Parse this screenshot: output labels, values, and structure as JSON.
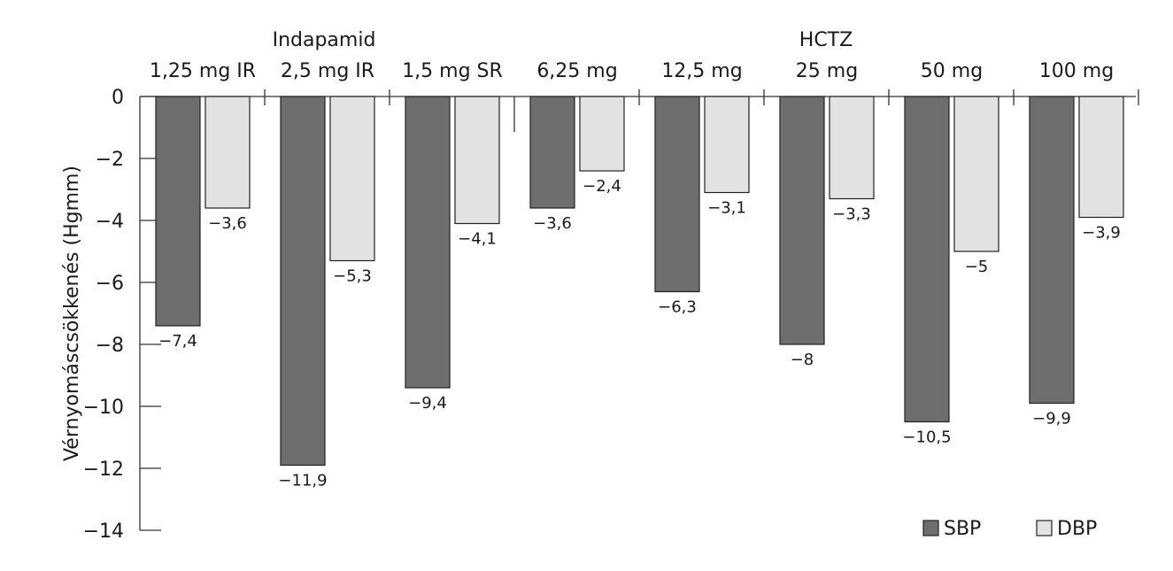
{
  "chart_data": {
    "type": "bar",
    "title": "",
    "xlabel": "",
    "ylabel": "Vérnyomáscsökkenés (Hgmm)",
    "ylim": [
      -14,
      0
    ],
    "yticks": [
      "0",
      "−2",
      "−4",
      "−6",
      "−8",
      "−10",
      "−12",
      "−14"
    ],
    "ytick_values": [
      0,
      -2,
      -4,
      -6,
      -8,
      -10,
      -12,
      -14
    ],
    "grid": false,
    "legend_position": "bottom-right",
    "groups": [
      {
        "label": "Indapamid",
        "categories": [
          "1,25 mg IR",
          "2,5 mg IR",
          "1,5 mg SR"
        ]
      },
      {
        "label": "HCTZ",
        "categories": [
          "6,25 mg",
          "12,5 mg",
          "25 mg",
          "50 mg",
          "100 mg"
        ]
      }
    ],
    "categories": [
      "1,25 mg IR",
      "2,5 mg IR",
      "1,5 mg SR",
      "6,25 mg",
      "12,5 mg",
      "25 mg",
      "50 mg",
      "100 mg"
    ],
    "series": [
      {
        "name": "SBP",
        "color": "#6e6e6e",
        "values": [
          -7.4,
          -11.9,
          -9.4,
          -3.6,
          -6.3,
          -8,
          -10.5,
          -9.9
        ],
        "labels": [
          "−7,4",
          "−11,9",
          "−9,4",
          "−3,6",
          "−6,3",
          "−8",
          "−10,5",
          "−9,9"
        ]
      },
      {
        "name": "DBP",
        "color": "#e2e2e2",
        "values": [
          -3.6,
          -5.3,
          -4.1,
          -2.4,
          -3.1,
          -3.3,
          -5,
          -3.9
        ],
        "labels": [
          "−3,6",
          "−5,3",
          "−4,1",
          "−2,4",
          "−3,1",
          "−3,3",
          "−5",
          "−3,9"
        ]
      }
    ]
  }
}
